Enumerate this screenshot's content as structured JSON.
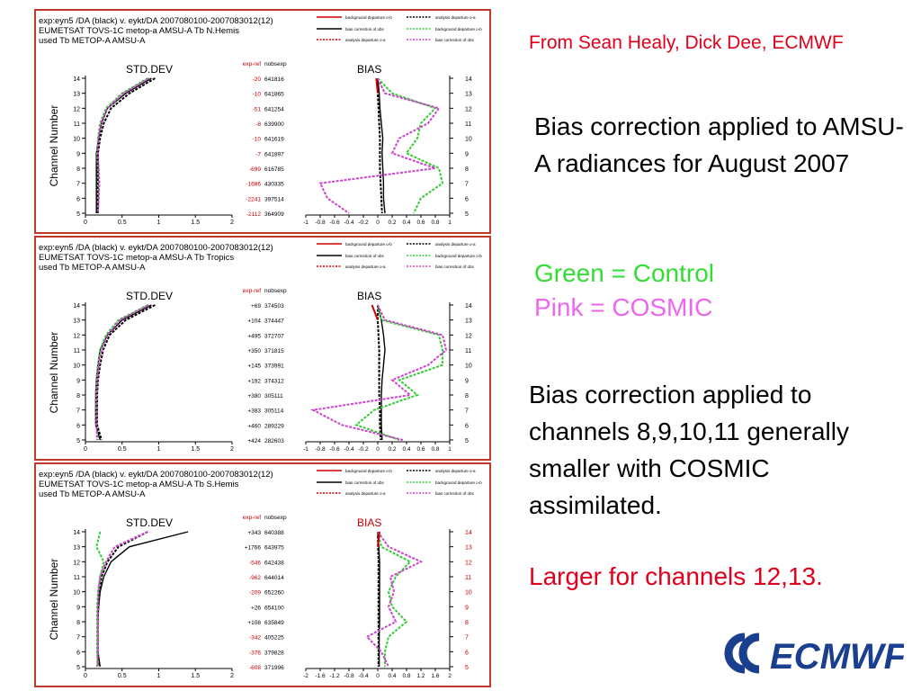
{
  "credit": "From Sean Healy, Dick Dee, ECMWF",
  "description": "Bias correction applied to AMSU-A radiances for August 2007",
  "legend_green": "Green = Control",
  "legend_pink": "Pink = COSMIC",
  "note": "Bias correction applied to channels 8,9,10,11 generally smaller with COSMIC assimilated.",
  "note_red": "Larger for channels 12,13.",
  "logo_text": "ECMWF",
  "colors": {
    "control": "#33cc33",
    "cosmic": "#cc44cc",
    "black": "#000000",
    "red": "#cc0000",
    "frame": "#c0392b"
  },
  "legend_items": [
    "background departure o-b",
    "analysis departure o-a",
    "bias correction of obs",
    "background departure o-b",
    "analysis departure o-a",
    "bias correction of obs"
  ],
  "chart_data": [
    {
      "type": "line",
      "header": [
        "exp:eyn5 /DA (black)  v. eykt/DA 2007080100-2007083012(12)",
        "EUMETSAT TOVS-1C metop-a AMSU-A Tb  N.Hemis",
        "used Tb METOP-A AMSU-A"
      ],
      "left_title": "STD.DEV",
      "right_title": "BIAS",
      "bias_title_red": false,
      "ylabel": "Channel Number",
      "channels": [
        14,
        13,
        12,
        11,
        10,
        9,
        8,
        7,
        6,
        5
      ],
      "stat_headers": [
        "exp-ref",
        "nobsexp"
      ],
      "exp_ref": [
        "-20",
        "-10",
        "-51",
        "-8",
        "-10",
        "-7",
        "-699",
        "-1686",
        "-2241",
        "-2112"
      ],
      "exp_ref_red": [
        true,
        true,
        true,
        true,
        true,
        true,
        true,
        true,
        true,
        true
      ],
      "nobsexp": [
        "641816",
        "641865",
        "641254",
        "639900",
        "641619",
        "641897",
        "616785",
        "430335",
        "397514",
        "364909"
      ],
      "std_xticks": [
        "0",
        "0.5",
        "1",
        "1.5",
        "2"
      ],
      "std_xlim": [
        0,
        2
      ],
      "bias_xticks": [
        "-1",
        "-0.8",
        "-0.6",
        "-0.4",
        "-0.2",
        "0",
        "0.2",
        "0.4",
        "0.6",
        "0.8",
        "1"
      ],
      "bias_xlim": [
        -1,
        1
      ],
      "std_series": [
        {
          "color": "black",
          "dashed": false,
          "values": [
            0.9,
            0.55,
            0.3,
            0.22,
            0.18,
            0.15,
            0.15,
            0.15,
            0.15,
            0.15
          ]
        },
        {
          "color": "black",
          "dashed": true,
          "values": [
            0.95,
            0.6,
            0.35,
            0.25,
            0.2,
            0.17,
            0.17,
            0.17,
            0.17,
            0.17
          ]
        },
        {
          "color": "control",
          "dashed": true,
          "values": [
            0.85,
            0.5,
            0.28,
            0.2,
            0.17,
            0.16,
            0.17,
            0.18,
            0.18,
            0.17
          ]
        },
        {
          "color": "cosmic",
          "dashed": true,
          "values": [
            0.87,
            0.52,
            0.3,
            0.21,
            0.18,
            0.17,
            0.18,
            0.19,
            0.18,
            0.17
          ]
        }
      ],
      "bias_series": [
        {
          "color": "black",
          "dashed": false,
          "values": [
            0.0,
            0.02,
            0.03,
            0.05,
            0.07,
            0.06,
            0.07,
            0.08,
            0.08,
            0.1
          ]
        },
        {
          "color": "black",
          "dashed": true,
          "values": [
            0.0,
            0.0,
            0.01,
            0.02,
            0.03,
            0.03,
            0.03,
            0.04,
            0.05,
            0.06
          ]
        },
        {
          "color": "control",
          "dashed": true,
          "values": [
            0.0,
            0.2,
            0.8,
            0.6,
            0.55,
            0.4,
            0.85,
            0.9,
            0.6,
            0.5
          ]
        },
        {
          "color": "cosmic",
          "dashed": true,
          "values": [
            0.0,
            0.1,
            0.85,
            0.7,
            0.3,
            0.2,
            0.8,
            -0.8,
            -0.7,
            -0.4
          ]
        },
        {
          "color": "red",
          "dashed": false,
          "values": [
            -0.02,
            0.0,
            null,
            null,
            null,
            null,
            null,
            null,
            null,
            null
          ]
        }
      ]
    },
    {
      "type": "line",
      "header": [
        "exp:eyn5 /DA (black)  v. eykt/DA 2007080100-2007083012(12)",
        "EUMETSAT TOVS-1C metop-a AMSU-A Tb  Tropics",
        "used Tb METOP-A AMSU-A"
      ],
      "left_title": "STD.DEV",
      "right_title": "BIAS",
      "bias_title_red": false,
      "ylabel": "Channel Number",
      "channels": [
        14,
        13,
        12,
        11,
        10,
        9,
        8,
        7,
        6,
        5
      ],
      "stat_headers": [
        "exp-ref",
        "nobsexp"
      ],
      "exp_ref": [
        "+69",
        "+104",
        "+495",
        "+350",
        "+145",
        "+192",
        "+380",
        "+383",
        "+460",
        "+424"
      ],
      "exp_ref_red": [
        false,
        false,
        false,
        false,
        false,
        false,
        false,
        false,
        false,
        false
      ],
      "nobsexp": [
        "374503",
        "374447",
        "372707",
        "371815",
        "373991",
        "374312",
        "305111",
        "305114",
        "289229",
        "282603"
      ],
      "std_xticks": [
        "0",
        "0.5",
        "1",
        "1.5",
        "2"
      ],
      "std_xlim": [
        0,
        2
      ],
      "bias_xticks": [
        "-1",
        "-0.8",
        "-0.6",
        "-0.4",
        "-0.2",
        "0",
        "0.2",
        "0.4",
        "0.6",
        "0.8",
        "1"
      ],
      "bias_xlim": [
        -1,
        1
      ],
      "std_series": [
        {
          "color": "black",
          "dashed": false,
          "values": [
            0.9,
            0.5,
            0.3,
            0.2,
            0.17,
            0.15,
            0.14,
            0.14,
            0.14,
            0.2
          ]
        },
        {
          "color": "black",
          "dashed": true,
          "values": [
            0.95,
            0.55,
            0.33,
            0.24,
            0.2,
            0.17,
            0.16,
            0.16,
            0.16,
            0.22
          ]
        },
        {
          "color": "control",
          "dashed": true,
          "values": [
            0.85,
            0.45,
            0.28,
            0.2,
            0.17,
            0.15,
            0.14,
            0.15,
            0.15,
            0.17
          ]
        },
        {
          "color": "cosmic",
          "dashed": true,
          "values": [
            0.87,
            0.47,
            0.3,
            0.22,
            0.18,
            0.16,
            0.15,
            0.16,
            0.15,
            0.16
          ]
        }
      ],
      "bias_series": [
        {
          "color": "black",
          "dashed": false,
          "values": [
            0.0,
            0.05,
            0.08,
            0.1,
            0.08,
            0.06,
            0.05,
            0.05,
            0.05,
            0.06
          ]
        },
        {
          "color": "black",
          "dashed": true,
          "values": [
            0.0,
            0.0,
            0.01,
            0.02,
            0.02,
            0.02,
            0.02,
            0.03,
            0.03,
            0.04
          ]
        },
        {
          "color": "control",
          "dashed": true,
          "values": [
            0.0,
            0.05,
            0.85,
            0.9,
            0.9,
            0.3,
            0.55,
            -0.05,
            -0.3,
            0.3
          ]
        },
        {
          "color": "cosmic",
          "dashed": true,
          "values": [
            0.0,
            0.1,
            0.9,
            0.95,
            0.7,
            0.2,
            0.45,
            -0.9,
            -0.5,
            0.35
          ]
        },
        {
          "color": "red",
          "dashed": false,
          "values": [
            -0.08,
            0.0,
            null,
            null,
            null,
            null,
            null,
            null,
            null,
            null
          ]
        }
      ]
    },
    {
      "type": "line",
      "header": [
        "exp:eyn5 /DA (black)  v. eykt/DA 2007080100-2007083012(12)",
        "EUMETSAT TOVS-1C metop-a AMSU-A Tb  S.Hemis",
        "used Tb METOP-A AMSU-A"
      ],
      "left_title": "STD.DEV",
      "right_title": "BIAS",
      "bias_title_red": true,
      "ylabel": "Channel Number",
      "channels": [
        14,
        13,
        12,
        11,
        10,
        9,
        8,
        7,
        6,
        5
      ],
      "stat_headers": [
        "exp-ref",
        "nobsexp"
      ],
      "exp_ref": [
        "+343",
        "+1766",
        "-546",
        "-962",
        "-209",
        "+26",
        "+108",
        "-342",
        "-376",
        "-608"
      ],
      "exp_ref_red": [
        false,
        false,
        true,
        true,
        true,
        false,
        false,
        true,
        true,
        true
      ],
      "nobsexp": [
        "640388",
        "643975",
        "642438",
        "644014",
        "652260",
        "654100",
        "635849",
        "405225",
        "379828",
        "371996"
      ],
      "std_xticks": [
        "0",
        "0.5",
        "1",
        "1.5",
        "2"
      ],
      "std_xlim": [
        0,
        2
      ],
      "bias_xticks": [
        "-2",
        "-1.6",
        "-1.2",
        "-0.8",
        "-0.4",
        "0",
        "0.4",
        "0.8",
        "1.2",
        "1.6",
        "2"
      ],
      "bias_xlim": [
        -2,
        2
      ],
      "std_series": [
        {
          "color": "black",
          "dashed": false,
          "values": [
            1.4,
            0.6,
            0.35,
            0.25,
            0.2,
            0.18,
            0.17,
            0.17,
            0.17,
            0.2
          ]
        },
        {
          "color": "black",
          "dashed": true,
          "values": [
            0.85,
            0.45,
            0.3,
            0.22,
            0.19,
            0.17,
            0.16,
            0.16,
            0.16,
            0.18
          ]
        },
        {
          "color": "control",
          "dashed": true,
          "values": [
            0.2,
            0.15,
            0.25,
            0.2,
            0.17,
            0.16,
            0.16,
            0.16,
            0.16,
            0.17
          ]
        },
        {
          "color": "cosmic",
          "dashed": true,
          "values": [
            0.85,
            0.4,
            0.28,
            0.2,
            0.18,
            0.17,
            0.17,
            0.17,
            0.17,
            0.16
          ]
        }
      ],
      "bias_series": [
        {
          "color": "black",
          "dashed": false,
          "values": [
            0.0,
            0.03,
            0.05,
            0.05,
            0.05,
            0.05,
            0.05,
            0.04,
            0.04,
            0.04
          ]
        },
        {
          "color": "black",
          "dashed": true,
          "values": [
            0.0,
            0.01,
            0.02,
            0.02,
            0.02,
            0.02,
            0.02,
            0.02,
            0.02,
            0.02
          ]
        },
        {
          "color": "control",
          "dashed": true,
          "values": [
            0.0,
            0.1,
            0.9,
            0.5,
            0.3,
            0.4,
            0.8,
            0.3,
            0.2,
            0.2
          ]
        },
        {
          "color": "cosmic",
          "dashed": true,
          "values": [
            0.0,
            0.3,
            1.2,
            0.35,
            0.45,
            0.3,
            0.5,
            -0.3,
            0.1,
            0.3
          ]
        },
        {
          "color": "red",
          "dashed": false,
          "values": [
            0.05,
            0.0,
            null,
            null,
            null,
            null,
            null,
            null,
            null,
            null
          ]
        }
      ]
    }
  ]
}
